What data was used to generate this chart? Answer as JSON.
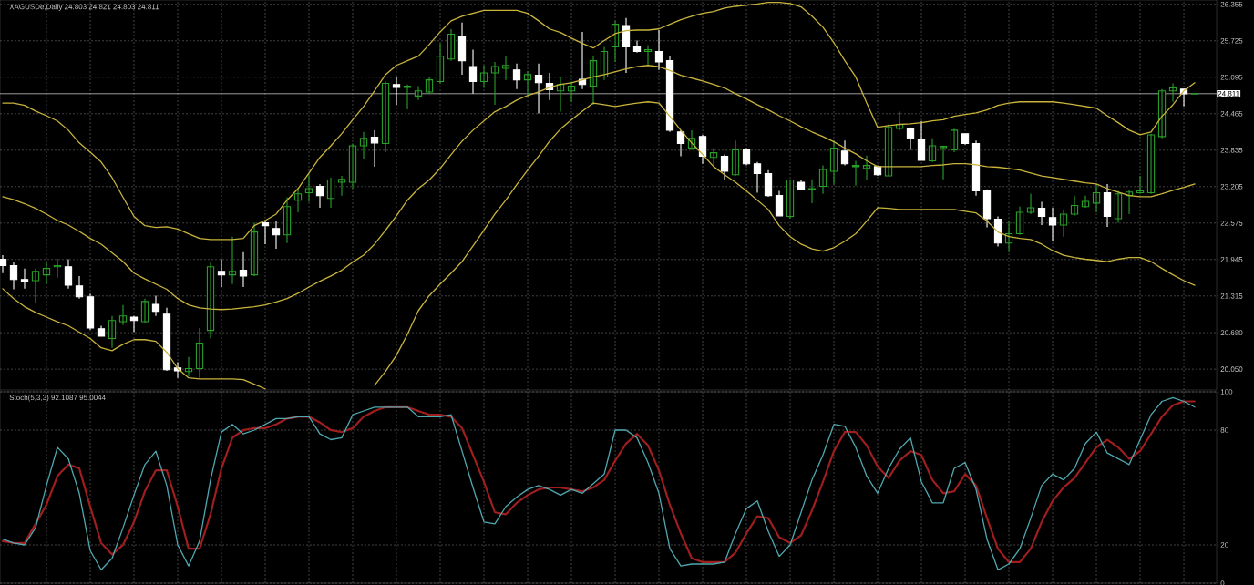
{
  "chart_data": [
    {
      "type": "candlestick",
      "title": "XAGUSDe,Daily  24.803 24.821 24.803 24.811",
      "categories": [
        null,
        null,
        null,
        null,
        null,
        null,
        null,
        null,
        null,
        null,
        null,
        null,
        null,
        null,
        null,
        null,
        null,
        null,
        null,
        null,
        null,
        null,
        null,
        null,
        null,
        null,
        null,
        null,
        null,
        null,
        null,
        null,
        null,
        null,
        null,
        null,
        null,
        null,
        null,
        null,
        null,
        null,
        null,
        null,
        null,
        null,
        null,
        null,
        null,
        null,
        null,
        null,
        null,
        null,
        null,
        null,
        null,
        null,
        null,
        null,
        null,
        null,
        null,
        null,
        null,
        null,
        null,
        null,
        null,
        null,
        null,
        null,
        null,
        null,
        null,
        null,
        null,
        null,
        null,
        null,
        null,
        null,
        null,
        null,
        null,
        null,
        null,
        null,
        null,
        null,
        null,
        null,
        null,
        null,
        null,
        null,
        null,
        null,
        null,
        null,
        null,
        null,
        null,
        null,
        null,
        null,
        null,
        null,
        null,
        null
      ],
      "ohlc": [
        [
          21.95,
          22.02,
          21.71,
          21.84
        ],
        [
          21.84,
          21.91,
          21.43,
          21.6
        ],
        [
          21.6,
          21.79,
          21.44,
          21.57
        ],
        [
          21.58,
          21.79,
          21.19,
          21.74
        ],
        [
          21.68,
          21.9,
          21.52,
          21.79
        ],
        [
          21.82,
          21.95,
          21.63,
          21.84
        ],
        [
          21.82,
          21.95,
          21.44,
          21.5
        ],
        [
          21.49,
          21.66,
          21.27,
          21.3
        ],
        [
          21.3,
          21.35,
          20.73,
          20.76
        ],
        [
          20.75,
          20.8,
          20.61,
          20.62
        ],
        [
          20.58,
          20.97,
          20.42,
          20.89
        ],
        [
          20.87,
          21.16,
          20.81,
          20.97
        ],
        [
          20.95,
          20.97,
          20.69,
          20.89
        ],
        [
          20.87,
          21.27,
          20.84,
          21.22
        ],
        [
          21.17,
          21.32,
          20.97,
          21.05
        ],
        [
          21.0,
          21.11,
          20.02,
          20.04
        ],
        [
          20.07,
          20.17,
          19.9,
          20.02
        ],
        [
          20.01,
          20.26,
          19.93,
          20.06
        ],
        [
          20.06,
          20.76,
          19.9,
          20.5
        ],
        [
          20.72,
          21.9,
          20.58,
          21.82
        ],
        [
          21.74,
          21.95,
          21.47,
          21.68
        ],
        [
          21.68,
          22.34,
          21.52,
          21.74
        ],
        [
          21.76,
          22.07,
          21.47,
          21.66
        ],
        [
          21.68,
          22.58,
          21.66,
          22.42
        ],
        [
          22.58,
          22.62,
          22.21,
          22.53
        ],
        [
          22.48,
          22.62,
          22.13,
          22.37
        ],
        [
          22.37,
          23.02,
          22.23,
          22.86
        ],
        [
          22.97,
          23.17,
          22.76,
          23.08
        ],
        [
          23.1,
          23.41,
          22.94,
          23.17
        ],
        [
          23.21,
          23.25,
          22.84,
          23.05
        ],
        [
          23.0,
          23.36,
          22.84,
          23.32
        ],
        [
          23.28,
          23.39,
          23.05,
          23.33
        ],
        [
          23.28,
          23.95,
          23.17,
          23.91
        ],
        [
          23.91,
          24.15,
          23.68,
          24.04
        ],
        [
          24.06,
          24.18,
          23.55,
          23.96
        ],
        [
          23.95,
          25.02,
          23.8,
          24.99
        ],
        [
          24.97,
          25.1,
          24.62,
          24.92
        ],
        [
          24.92,
          24.97,
          24.54,
          24.94
        ],
        [
          24.77,
          24.94,
          24.7,
          24.86
        ],
        [
          24.84,
          25.1,
          24.81,
          25.05
        ],
        [
          25.02,
          25.68,
          24.99,
          25.46
        ],
        [
          25.41,
          25.93,
          25.38,
          25.84
        ],
        [
          25.8,
          26.04,
          25.14,
          25.38
        ],
        [
          25.28,
          25.57,
          24.81,
          25.02
        ],
        [
          25.02,
          25.3,
          24.91,
          25.17
        ],
        [
          25.17,
          25.36,
          24.62,
          25.28
        ],
        [
          25.25,
          25.46,
          25.05,
          25.3
        ],
        [
          25.22,
          25.33,
          24.89,
          25.05
        ],
        [
          25.05,
          25.2,
          24.75,
          25.14
        ],
        [
          25.13,
          25.33,
          24.47,
          25.0
        ],
        [
          24.99,
          25.17,
          24.7,
          24.88
        ],
        [
          24.86,
          25.1,
          24.5,
          24.97
        ],
        [
          24.86,
          25.02,
          24.67,
          24.94
        ],
        [
          25.06,
          25.88,
          24.89,
          24.97
        ],
        [
          24.94,
          25.46,
          24.62,
          25.38
        ],
        [
          25.1,
          25.62,
          25.05,
          25.54
        ],
        [
          25.62,
          26.07,
          25.36,
          26.01
        ],
        [
          25.99,
          26.12,
          25.17,
          25.62
        ],
        [
          25.63,
          25.73,
          25.52,
          25.54
        ],
        [
          25.54,
          25.65,
          25.3,
          25.57
        ],
        [
          25.54,
          25.91,
          25.22,
          25.36
        ],
        [
          25.38,
          25.46,
          24.15,
          24.18
        ],
        [
          24.15,
          24.18,
          23.73,
          23.95
        ],
        [
          23.87,
          24.18,
          23.84,
          24.04
        ],
        [
          24.07,
          24.1,
          23.6,
          23.73
        ],
        [
          23.71,
          23.87,
          23.57,
          23.79
        ],
        [
          23.73,
          23.76,
          23.32,
          23.47
        ],
        [
          23.41,
          24.0,
          23.39,
          23.84
        ],
        [
          23.84,
          23.87,
          23.57,
          23.6
        ],
        [
          23.6,
          23.63,
          23.1,
          23.43
        ],
        [
          23.43,
          23.49,
          23.03,
          23.05
        ],
        [
          23.05,
          23.13,
          22.69,
          22.7
        ],
        [
          22.69,
          23.33,
          22.65,
          23.32
        ],
        [
          23.28,
          23.32,
          23.14,
          23.16
        ],
        [
          23.16,
          23.33,
          22.92,
          23.17
        ],
        [
          23.21,
          23.57,
          23.08,
          23.5
        ],
        [
          23.47,
          24.0,
          23.24,
          23.87
        ],
        [
          23.82,
          24.0,
          23.57,
          23.6
        ],
        [
          23.55,
          23.65,
          23.22,
          23.57
        ],
        [
          23.52,
          23.74,
          23.32,
          23.57
        ],
        [
          23.55,
          23.57,
          23.39,
          23.41
        ],
        [
          23.39,
          24.28,
          23.39,
          24.23
        ],
        [
          24.21,
          24.5,
          24.18,
          24.28
        ],
        [
          24.21,
          24.23,
          23.84,
          24.04
        ],
        [
          24.02,
          24.34,
          23.65,
          23.66
        ],
        [
          23.65,
          24.04,
          23.63,
          23.91
        ],
        [
          23.88,
          23.91,
          23.33,
          23.9
        ],
        [
          23.84,
          24.2,
          23.8,
          24.18
        ],
        [
          24.12,
          24.12,
          23.93,
          23.95
        ],
        [
          23.95,
          24.0,
          23.05,
          23.13
        ],
        [
          23.14,
          23.16,
          22.5,
          22.65
        ],
        [
          22.64,
          22.69,
          22.17,
          22.23
        ],
        [
          22.23,
          22.61,
          22.07,
          22.39
        ],
        [
          22.39,
          22.86,
          22.37,
          22.76
        ],
        [
          22.76,
          23.08,
          22.73,
          22.84
        ],
        [
          22.83,
          22.94,
          22.54,
          22.69
        ],
        [
          22.67,
          22.84,
          22.26,
          22.54
        ],
        [
          22.54,
          22.81,
          22.34,
          22.73
        ],
        [
          22.73,
          23.05,
          22.7,
          22.88
        ],
        [
          22.86,
          23.05,
          22.84,
          22.95
        ],
        [
          22.92,
          23.25,
          22.76,
          23.1
        ],
        [
          23.1,
          23.25,
          22.51,
          22.69
        ],
        [
          22.65,
          23.13,
          22.58,
          23.08
        ],
        [
          23.05,
          23.14,
          22.73,
          23.11
        ],
        [
          23.1,
          23.39,
          23.08,
          23.13
        ],
        [
          23.1,
          24.12,
          23.08,
          24.1
        ],
        [
          24.07,
          24.89,
          24.04,
          24.86
        ],
        [
          24.86,
          24.99,
          24.67,
          24.91
        ],
        [
          24.89,
          24.89,
          24.59,
          24.81
        ],
        [
          24.803,
          24.821,
          24.803,
          24.811
        ]
      ],
      "colors": [
        "#ffffff",
        "#ffffff",
        "#ffffff",
        "#28a028",
        "#28a028",
        "#28a028",
        "#ffffff",
        "#ffffff",
        "#ffffff",
        "#ffffff",
        "#28a028",
        "#28a028",
        "#ffffff",
        "#28a028",
        "#ffffff",
        "#ffffff",
        "#ffffff",
        "#28a028",
        "#28a028",
        "#28a028",
        "#ffffff",
        "#28a028",
        "#ffffff",
        "#28a028",
        "#ffffff",
        "#ffffff",
        "#28a028",
        "#28a028",
        "#28a028",
        "#ffffff",
        "#28a028",
        "#28a028",
        "#28a028",
        "#28a028",
        "#ffffff",
        "#28a028",
        "#ffffff",
        "#28a028",
        "#28a028",
        "#28a028",
        "#28a028",
        "#28a028",
        "#ffffff",
        "#ffffff",
        "#28a028",
        "#28a028",
        "#28a028",
        "#ffffff",
        "#28a028",
        "#ffffff",
        "#ffffff",
        "#28a028",
        "#28a028",
        "#ffffff",
        "#28a028",
        "#28a028",
        "#28a028",
        "#ffffff",
        "#ffffff",
        "#28a028",
        "#ffffff",
        "#ffffff",
        "#ffffff",
        "#28a028",
        "#ffffff",
        "#28a028",
        "#ffffff",
        "#28a028",
        "#ffffff",
        "#ffffff",
        "#ffffff",
        "#ffffff",
        "#28a028",
        "#ffffff",
        "#28a028",
        "#28a028",
        "#28a028",
        "#ffffff",
        "#28a028",
        "#28a028",
        "#ffffff",
        "#28a028",
        "#28a028",
        "#ffffff",
        "#ffffff",
        "#28a028",
        "#28a028",
        "#28a028",
        "#ffffff",
        "#ffffff",
        "#ffffff",
        "#ffffff",
        "#28a028",
        "#28a028",
        "#28a028",
        "#ffffff",
        "#ffffff",
        "#28a028",
        "#28a028",
        "#28a028",
        "#28a028",
        "#ffffff",
        "#28a028",
        "#28a028",
        "#28a028",
        "#28a028",
        "#28a028",
        "#28a028",
        "#ffffff",
        "#28a028"
      ],
      "series": [
        {
          "type": "line",
          "color": "#c8b43c",
          "values": [
            24.65,
            24.65,
            24.61,
            24.51,
            24.43,
            24.34,
            24.18,
            23.96,
            23.8,
            23.63,
            23.36,
            23.02,
            22.69,
            22.53,
            22.5,
            22.51,
            22.47,
            22.39,
            22.31,
            22.29,
            22.29,
            22.29,
            22.31,
            22.53,
            22.62,
            22.73,
            22.97,
            23.17,
            23.44,
            23.71,
            23.91,
            24.12,
            24.36,
            24.59,
            24.86,
            25.14,
            25.3,
            25.38,
            25.46,
            25.66,
            25.88,
            26.07,
            26.15,
            26.2,
            26.25,
            26.25,
            26.25,
            26.25,
            26.2,
            26.07,
            25.93,
            25.87,
            25.77,
            25.68,
            25.6,
            25.73,
            25.85,
            25.9,
            25.91,
            25.91,
            25.93,
            26.01,
            26.09,
            26.15,
            26.2,
            26.23,
            26.29,
            26.32,
            26.34,
            26.36,
            26.39,
            26.39,
            26.37,
            26.31,
            26.15,
            25.96,
            25.69,
            25.38,
            25.1,
            24.65,
            24.23,
            24.26,
            24.28,
            24.29,
            24.31,
            24.34,
            24.36,
            24.42,
            24.45,
            24.48,
            24.53,
            24.61,
            24.65,
            24.67,
            24.67,
            24.67,
            24.67,
            24.65,
            24.62,
            24.59,
            24.56,
            24.43,
            24.31,
            24.18,
            24.1,
            24.15,
            24.42,
            24.62,
            24.86,
            25.0
          ]
        },
        {
          "type": "line",
          "color": "#c8b43c",
          "values": [
            23.03,
            22.98,
            22.91,
            22.83,
            22.73,
            22.62,
            22.54,
            22.43,
            22.31,
            22.21,
            22.06,
            21.91,
            21.71,
            21.61,
            21.52,
            21.43,
            21.27,
            21.16,
            21.11,
            21.09,
            21.08,
            21.09,
            21.11,
            21.13,
            21.16,
            21.21,
            21.27,
            21.36,
            21.47,
            21.57,
            21.66,
            21.76,
            21.9,
            22.02,
            22.21,
            22.45,
            22.7,
            22.97,
            23.17,
            23.32,
            23.52,
            23.76,
            23.99,
            24.18,
            24.34,
            24.5,
            24.59,
            24.7,
            24.78,
            24.84,
            24.92,
            24.97,
            25.0,
            25.05,
            25.1,
            25.14,
            25.19,
            25.24,
            25.28,
            25.3,
            25.28,
            25.21,
            25.13,
            25.08,
            25.03,
            24.97,
            24.91,
            24.81,
            24.72,
            24.62,
            24.53,
            24.43,
            24.34,
            24.24,
            24.15,
            24.07,
            23.98,
            23.87,
            23.77,
            23.65,
            23.55,
            23.55,
            23.55,
            23.55,
            23.55,
            23.57,
            23.58,
            23.6,
            23.6,
            23.58,
            23.55,
            23.54,
            23.52,
            23.49,
            23.44,
            23.39,
            23.36,
            23.33,
            23.3,
            23.27,
            23.25,
            23.17,
            23.11,
            23.05,
            23.03,
            23.03,
            23.08,
            23.14,
            23.19,
            23.25
          ]
        },
        {
          "type": "line",
          "color": "#c8b43c",
          "values": [
            21.44,
            21.27,
            21.13,
            21.03,
            20.95,
            20.87,
            20.8,
            20.69,
            20.58,
            20.42,
            20.37,
            20.48,
            20.56,
            20.56,
            20.53,
            20.34,
            20.06,
            19.9,
            19.88,
            19.88,
            19.88,
            19.88,
            19.87,
            19.79,
            19.71,
            null,
            null,
            null,
            null,
            null,
            null,
            null,
            null,
            null,
            19.77,
            20.01,
            20.29,
            20.65,
            21.06,
            21.32,
            21.52,
            21.71,
            21.91,
            22.18,
            22.45,
            22.73,
            22.97,
            23.24,
            23.49,
            23.73,
            23.99,
            24.2,
            24.36,
            24.51,
            24.65,
            24.62,
            24.59,
            24.62,
            24.65,
            24.67,
            24.65,
            24.42,
            24.18,
            23.96,
            23.76,
            23.55,
            23.41,
            23.28,
            23.13,
            22.97,
            22.81,
            22.53,
            22.34,
            22.21,
            22.13,
            22.09,
            22.15,
            22.26,
            22.39,
            22.61,
            22.84,
            22.83,
            22.81,
            22.81,
            22.81,
            22.81,
            22.81,
            22.81,
            22.78,
            22.75,
            22.61,
            22.42,
            22.34,
            22.31,
            22.29,
            22.21,
            22.1,
            22.02,
            21.98,
            21.95,
            21.93,
            21.91,
            21.95,
            21.98,
            21.98,
            21.91,
            21.79,
            21.68,
            21.58,
            21.5
          ]
        }
      ],
      "ylim": [
        19.69,
        26.43
      ],
      "yticks": [
        {
          "value": 20.05,
          "label": "20.050"
        },
        {
          "value": 20.68,
          "label": "20.680"
        },
        21.315,
        21.945,
        22.575,
        23.205,
        23.835,
        24.465,
        25.095,
        25.725,
        26.355
      ],
      "ref_lines": [
        {
          "axis": "y",
          "value": 24.811,
          "label": "24.811",
          "color": "#c0c0c0"
        }
      ],
      "grid": true,
      "tick_labels": "y"
    },
    {
      "type": "line",
      "title": "Stoch(5,3,3) 92.1087 95.0044",
      "categories": [
        null,
        null,
        null,
        null,
        null,
        null,
        null,
        null,
        null,
        null,
        null,
        null,
        null,
        null,
        null,
        null,
        null,
        null,
        null,
        null,
        null,
        null,
        null,
        null,
        null,
        null,
        null,
        null,
        null,
        null,
        null,
        null,
        null,
        null,
        null,
        null,
        null,
        null,
        null,
        null,
        null,
        null,
        null,
        null,
        null,
        null,
        null,
        null,
        null,
        null,
        null,
        null,
        null,
        null,
        null,
        null,
        null,
        null,
        null,
        null,
        null,
        null,
        null,
        null,
        null,
        null,
        null,
        null,
        null,
        null,
        null,
        null,
        null,
        null,
        null,
        null,
        null,
        null,
        null,
        null,
        null,
        null,
        null,
        null,
        null,
        null,
        null,
        null,
        null,
        null,
        null,
        null,
        null,
        null,
        null,
        null,
        null,
        null,
        null,
        null,
        null,
        null,
        null,
        null,
        null,
        null,
        null,
        null,
        null,
        null
      ],
      "series": [
        {
          "color": "#4fa8b0",
          "values": [
            23,
            21,
            20,
            29,
            51,
            71,
            65,
            47,
            17,
            7,
            13,
            29,
            46,
            62,
            69,
            51,
            20,
            9,
            22,
            54,
            79,
            83,
            78,
            80,
            83,
            86,
            86,
            87,
            87,
            78,
            75,
            76,
            88,
            90,
            92,
            92,
            92,
            92,
            87,
            87,
            87,
            88,
            69,
            50,
            32,
            31,
            40,
            45,
            49,
            51,
            49,
            46,
            49,
            47,
            52,
            57,
            80,
            80,
            76,
            63,
            47,
            18,
            9,
            10,
            10,
            10,
            11,
            26,
            39,
            43,
            27,
            14,
            20,
            37,
            54,
            67,
            83,
            82,
            71,
            56,
            47,
            60,
            70,
            76,
            53,
            42,
            42,
            60,
            63,
            49,
            23,
            7,
            10,
            18,
            34,
            51,
            57,
            54,
            60,
            73,
            79,
            68,
            65,
            62,
            75,
            88,
            95,
            97,
            95,
            92
          ]
        },
        {
          "color": "#a01e1e",
          "line_style": "dotted",
          "values": [
            22,
            21,
            21,
            31,
            41,
            56,
            62,
            60,
            40,
            21,
            15,
            20,
            32,
            48,
            59,
            59,
            40,
            18,
            18,
            36,
            60,
            76,
            80,
            81,
            81,
            83,
            86,
            87,
            87,
            84,
            80,
            79,
            81,
            87,
            90,
            92,
            92,
            92,
            90,
            88,
            88,
            87,
            81,
            67,
            53,
            37,
            36,
            42,
            46,
            49,
            50,
            50,
            49,
            48,
            50,
            54,
            64,
            73,
            78,
            72,
            59,
            41,
            26,
            13,
            11,
            11,
            11,
            16,
            26,
            35,
            34,
            24,
            21,
            25,
            38,
            53,
            69,
            79,
            79,
            72,
            61,
            55,
            64,
            69,
            67,
            54,
            47,
            48,
            57,
            51,
            34,
            18,
            11,
            11,
            18,
            32,
            43,
            50,
            55,
            63,
            71,
            75,
            71,
            65,
            69,
            78,
            87,
            93,
            95,
            95
          ]
        }
      ],
      "ylim": [
        0,
        100
      ],
      "yticks": [
        0,
        20,
        80,
        100
      ],
      "grid": true,
      "tick_labels": "y"
    }
  ]
}
